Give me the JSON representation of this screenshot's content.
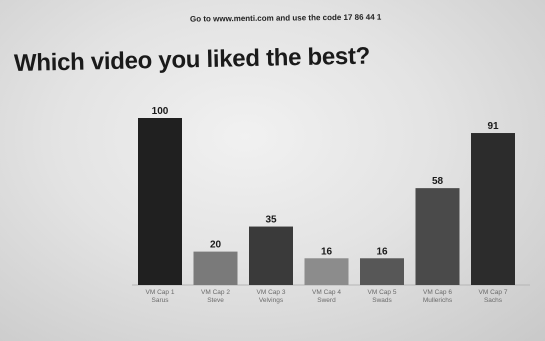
{
  "header": {
    "instruction": "Go to www.menti.com and use the code 17 86 44 1"
  },
  "chart_data": {
    "type": "bar",
    "title": "Which video you liked the best?",
    "xlabel": "",
    "ylabel": "",
    "ylim": [
      0,
      100
    ],
    "grid": false,
    "categories": [
      [
        "VM Cap 1",
        "Sarus"
      ],
      [
        "VM Cap 2",
        "Steve"
      ],
      [
        "VM Cap 3",
        "Velvings"
      ],
      [
        "VM Cap 4",
        "Swerd"
      ],
      [
        "VM Cap 5",
        "Swads"
      ],
      [
        "VM Cap 6",
        "Mullerichs"
      ],
      [
        "VM Cap 7",
        "Sachs"
      ]
    ],
    "values": [
      100,
      20,
      35,
      16,
      16,
      58,
      91
    ],
    "bar_colors": [
      "#202020",
      "#7a7a7a",
      "#3a3a3a",
      "#8c8c8c",
      "#575757",
      "#4a4a4a",
      "#2c2c2c"
    ]
  }
}
